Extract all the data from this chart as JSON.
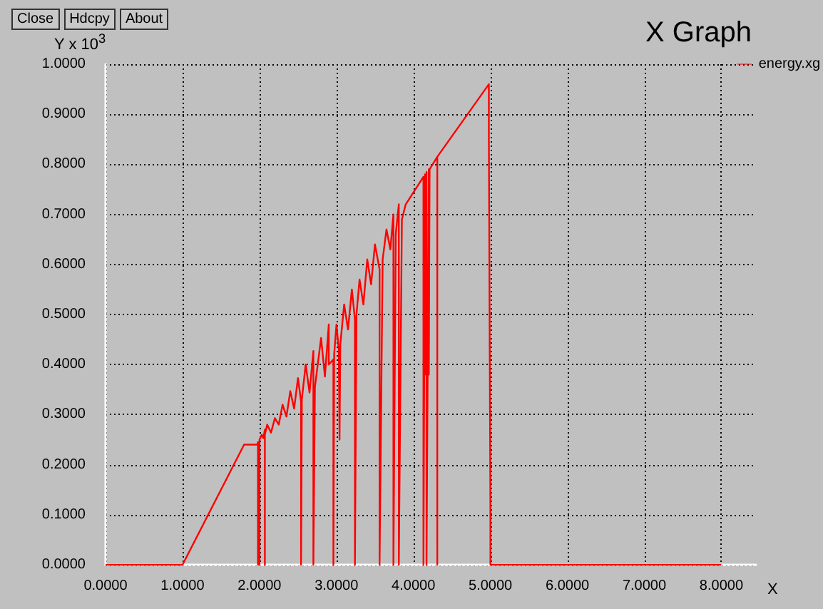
{
  "chart_data": {
    "type": "line",
    "title": "X Graph",
    "xlabel": "X",
    "ylabel": "Y x 10$^{3}$",
    "annotations": [
      "Close",
      "Hdcpy",
      "About"
    ],
    "x": [
      0,
      1,
      1.8,
      1.97,
      1.98,
      1.98,
      2.0,
      2.0,
      2.0,
      2.03,
      2.05,
      2.07,
      2.07,
      2.07,
      2.1,
      2.15,
      2.2,
      2.25,
      2.3,
      2.35,
      2.4,
      2.45,
      2.5,
      2.54,
      2.54,
      2.55,
      2.6,
      2.65,
      2.7,
      2.7,
      2.72,
      2.8,
      2.85,
      2.9,
      2.9,
      2.96,
      2.96,
      2.97,
      3.0,
      3.03,
      3.04,
      3.05,
      3.1,
      3.15,
      3.2,
      3.24,
      3.24,
      3.26,
      3.3,
      3.35,
      3.4,
      3.45,
      3.5,
      3.56,
      3.56,
      3.6,
      3.65,
      3.7,
      3.74,
      3.74,
      3.77,
      3.81,
      3.81,
      3.85,
      3.9,
      4.13,
      4.13,
      4.15,
      4.15,
      4.17,
      4.17,
      4.2,
      4.2,
      4.21,
      4.31,
      4.31,
      4.31,
      4.98,
      4.98,
      4.99,
      4.99,
      5.0,
      5.0,
      8.0
    ],
    "series": [
      {
        "name": "energy.xg",
        "color": "#ff0000",
        "values": [
          0,
          0,
          0.24,
          0.24,
          0.245,
          0,
          0.245,
          0,
          0.25,
          0.26,
          0.253,
          0.27,
          0,
          0.26,
          0.28,
          0.264,
          0.293,
          0.28,
          0.32,
          0.296,
          0.347,
          0.312,
          0.373,
          0.326,
          0,
          0.33,
          0.4,
          0.344,
          0.427,
          0,
          0.355,
          0.453,
          0.376,
          0.48,
          0.4,
          0.41,
          0,
          0.42,
          0.48,
          0.43,
          0.25,
          0.44,
          0.52,
          0.47,
          0.55,
          0.49,
          0,
          0.5,
          0.57,
          0.52,
          0.61,
          0.56,
          0.64,
          0.59,
          0,
          0.61,
          0.67,
          0.63,
          0.7,
          0,
          0.66,
          0.72,
          0,
          0.69,
          0.72,
          0.775,
          0,
          0.78,
          0.38,
          0.785,
          0,
          0.79,
          0.38,
          0.79,
          0.815,
          0,
          0.815,
          0.96,
          0.85,
          0.85,
          0.48,
          0.12,
          0,
          0
        ]
      }
    ],
    "xlim": [
      0,
      8.45
    ],
    "ylim": [
      0,
      1
    ],
    "xticks": [
      {
        "value": 0,
        "label": "0.0000"
      },
      {
        "value": 1,
        "label": "1.0000"
      },
      {
        "value": 2,
        "label": "2.0000"
      },
      {
        "value": 3,
        "label": "3.0000"
      },
      {
        "value": 4,
        "label": "4.0000"
      },
      {
        "value": 5,
        "label": "5.0000"
      },
      {
        "value": 6,
        "label": "6.0000"
      },
      {
        "value": 7,
        "label": "7.0000"
      },
      {
        "value": 8,
        "label": "8.0000"
      }
    ],
    "yticks": [
      {
        "value": 0,
        "label": "0.0000"
      },
      {
        "value": 0.1,
        "label": "0.1000"
      },
      {
        "value": 0.2,
        "label": "0.2000"
      },
      {
        "value": 0.3,
        "label": "0.3000"
      },
      {
        "value": 0.4,
        "label": "0.4000"
      },
      {
        "value": 0.5,
        "label": "0.5000"
      },
      {
        "value": 0.6,
        "label": "0.6000"
      },
      {
        "value": 0.7,
        "label": "0.7000"
      },
      {
        "value": 0.8,
        "label": "0.8000"
      },
      {
        "value": 0.9,
        "label": "0.9000"
      },
      {
        "value": 1,
        "label": "1.0000"
      }
    ],
    "grid": true,
    "legend": "top right"
  }
}
